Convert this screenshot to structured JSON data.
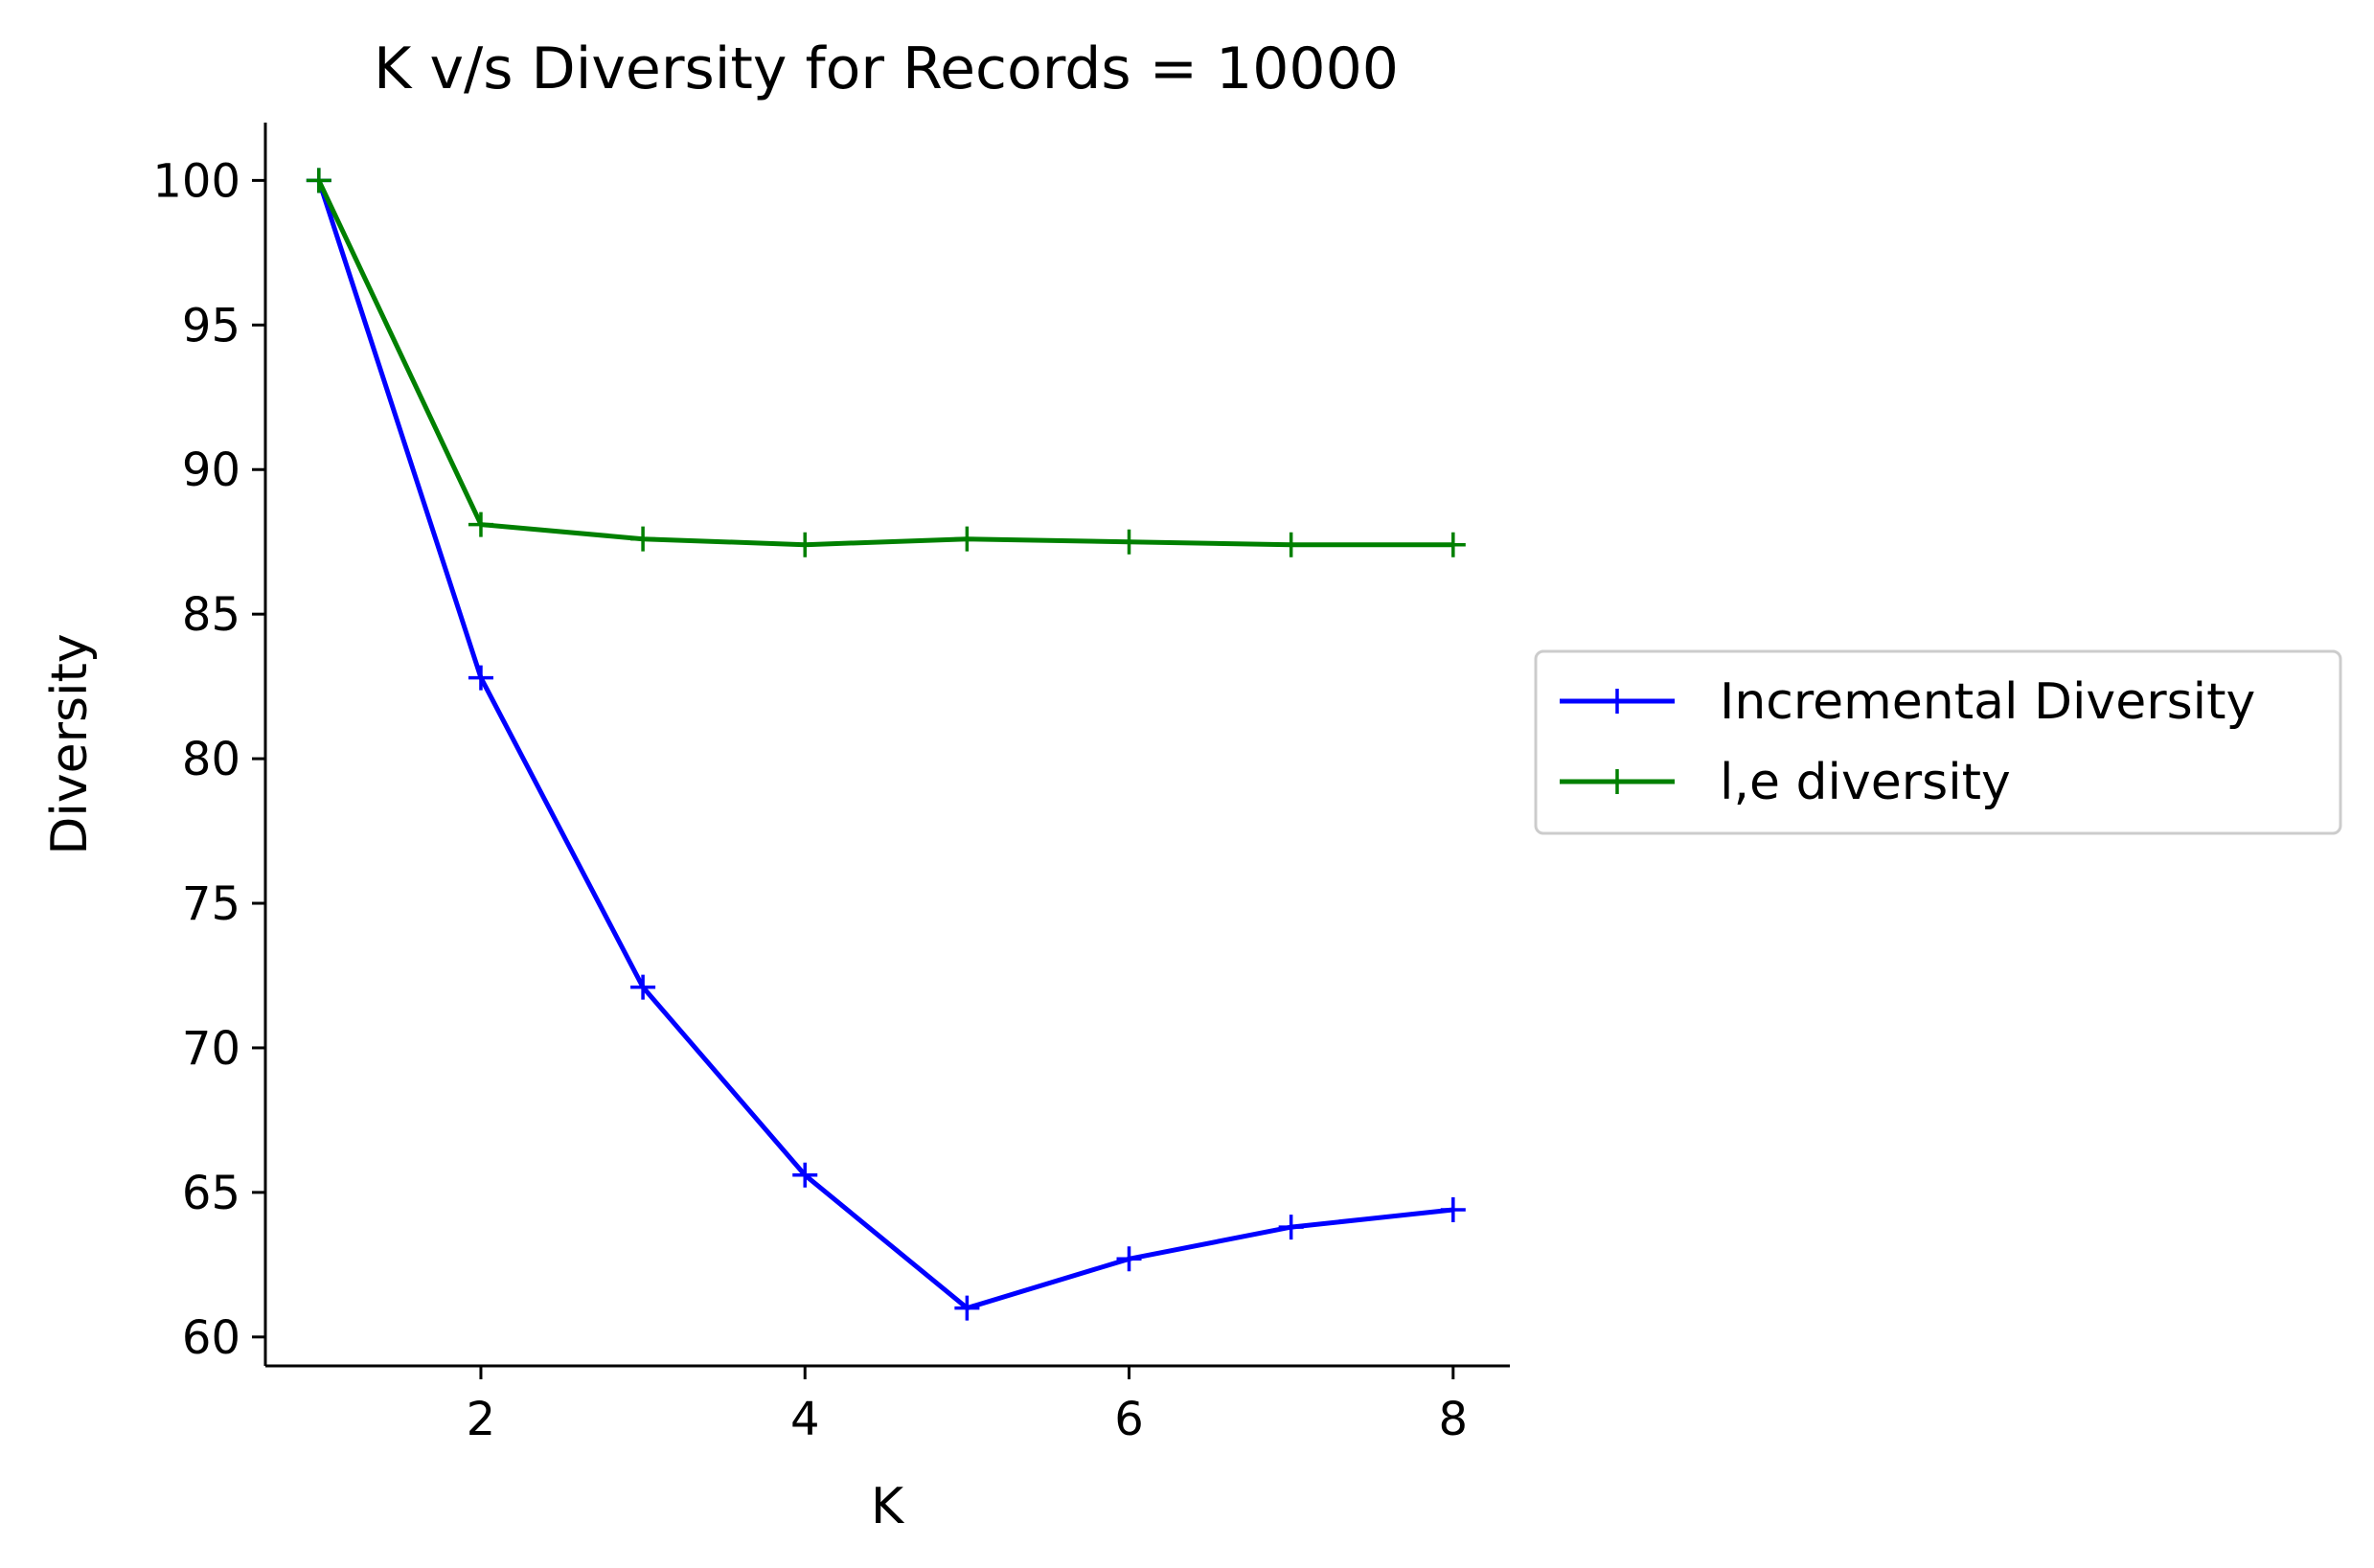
{
  "chart_data": {
    "type": "line",
    "title": "K v/s Diversity for Records = 10000",
    "xlabel": "K",
    "ylabel": "Diversity",
    "x": [
      1,
      2,
      3,
      4,
      5,
      6,
      7,
      8
    ],
    "xlim": [
      0.67,
      8.35
    ],
    "ylim": [
      59.0,
      102.0
    ],
    "xticks": [
      2,
      4,
      6,
      8
    ],
    "yticks": [
      60,
      65,
      70,
      75,
      80,
      85,
      90,
      95,
      100
    ],
    "marker": "+",
    "grid": false,
    "legend_position": "center-right-outside",
    "series": [
      {
        "name": "Incremental Diversity",
        "color": "#0000ff",
        "values": [
          100.0,
          82.8,
          72.1,
          65.6,
          61.0,
          62.7,
          63.8,
          64.4
        ]
      },
      {
        "name": "l,e diversity",
        "color": "#008000",
        "values": [
          100.0,
          88.1,
          87.6,
          87.4,
          87.6,
          87.5,
          87.4,
          87.4
        ]
      }
    ]
  }
}
